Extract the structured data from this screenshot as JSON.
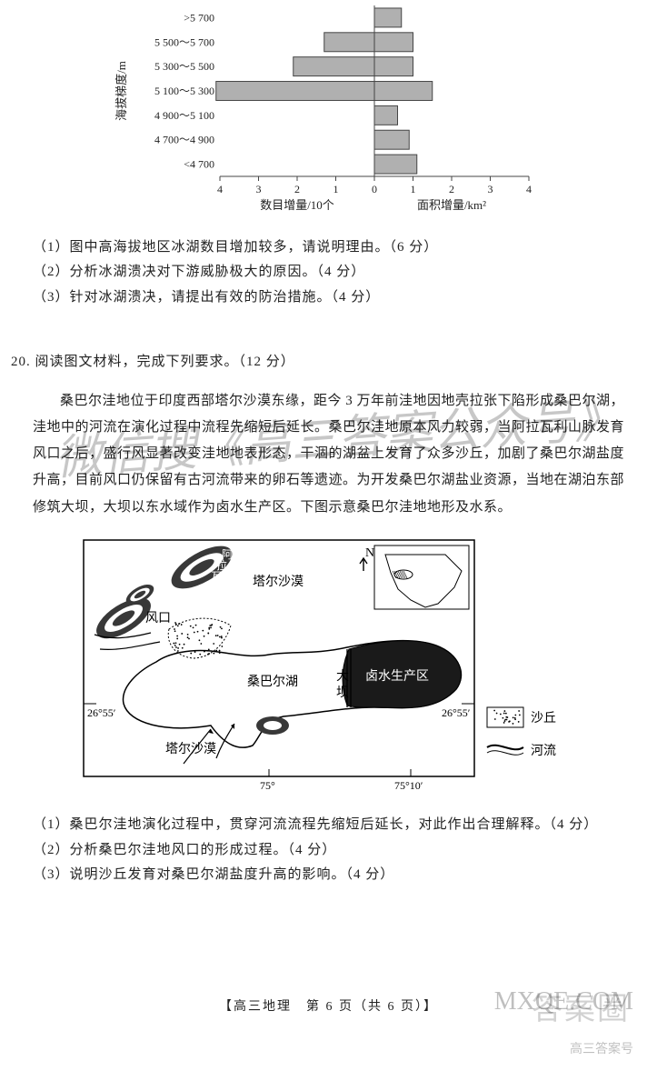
{
  "chart": {
    "type": "bar",
    "y_axis_label": "海拔梯度/m",
    "categories": [
      ">5 700",
      "5 500～5 700",
      "5 300～5 500",
      "5 100～5 300",
      "4 900～5 100",
      "4 700～4 900",
      "<4 700"
    ],
    "left_label": "数目增量/10个",
    "right_label": "面积增量/km²",
    "ticks": [
      "4",
      "3",
      "2",
      "1",
      "0",
      "1",
      "2",
      "3",
      "4"
    ],
    "left_max": 4,
    "right_max": 4,
    "bars": [
      {
        "left": 0.0,
        "right": 0.7
      },
      {
        "left": 1.3,
        "right": 1.0
      },
      {
        "left": 2.1,
        "right": 1.0
      },
      {
        "left": 4.1,
        "right": 1.5
      },
      {
        "left": 0.0,
        "right": 0.6
      },
      {
        "left": 0.0,
        "right": 0.9
      },
      {
        "left": 0.0,
        "right": 1.1
      }
    ],
    "bar_fill": "#b0b0b0",
    "bar_stroke": "#454545",
    "axis_color": "#454545",
    "font_size": 12,
    "font_family": "SimSun, serif"
  },
  "q19": {
    "sub1": "（1）图中高海拔地区冰湖数目增加较多，请说明理由。（6 分）",
    "sub2": "（2）分析冰湖溃决对下游威胁极大的原因。（4 分）",
    "sub3": "（3）针对冰湖溃决，请提出有效的防治措施。（4 分）"
  },
  "q20": {
    "head": "20. 阅读图文材料，完成下列要求。（12 分）",
    "para": "桑巴尔洼地位于印度西部塔尔沙漠东缘，距今 3 万年前洼地因地壳拉张下陷形成桑巴尔湖，洼地中的河流在演化过程中流程先缩短后延长。桑巴尔洼地原本风力较弱，当阿拉瓦利山脉发育风口之后，盛行风显著改变洼地地表形态，干涸的湖盆上发育了众多沙丘，加剧了桑巴尔湖盐度升高，目前风口仍保留有古河流带来的卵石等遗迹。为开发桑巴尔湖盐业资源，当地在湖泊东部修筑大坝，大坝以东水域作为卤水生产区。下图示意桑巴尔洼地地形及水系。",
    "sub1": "（1）桑巴尔洼地演化过程中，贯穿河流流程先缩短后延长，对此作出合理解释。（4 分）",
    "sub2": "（2）分析桑巴尔洼地风口的形成过程。（4 分）",
    "sub3": "（3）说明沙丘发育对桑巴尔湖盐度升高的影响。（4 分）"
  },
  "map": {
    "type": "map",
    "labels": {
      "mountain": "阿拉瓦利山脉",
      "desert_top": "塔尔沙漠",
      "desert_bottom": "塔尔沙漠",
      "windgap": "风口",
      "lake": "桑巴尔湖",
      "dam": "大坝",
      "brine": "卤水生产区",
      "north": "N",
      "lat_left": "26°55′",
      "lat_right": "26°55′",
      "lon_left": "75°",
      "lon_right": "75°10′",
      "legend_dune": "沙丘",
      "legend_river": "河流"
    },
    "colors": {
      "water_fill": "#ffffff",
      "brine_fill": "#1a1a1a",
      "mountain_fill": "#383838",
      "mountain_inner": "#ffffff",
      "outline": "#000000",
      "legend_box": "#000000"
    },
    "font_size": 14,
    "font_family": "SimSun, serif"
  },
  "footer": "【高三地理　第 6 页（共 6 页）】",
  "watermarks": {
    "wm1": "微信搜《高三答案公众号》",
    "logo1": "答案圈",
    "logo2": "MXQE.COM",
    "logo3": "高三答案号"
  }
}
